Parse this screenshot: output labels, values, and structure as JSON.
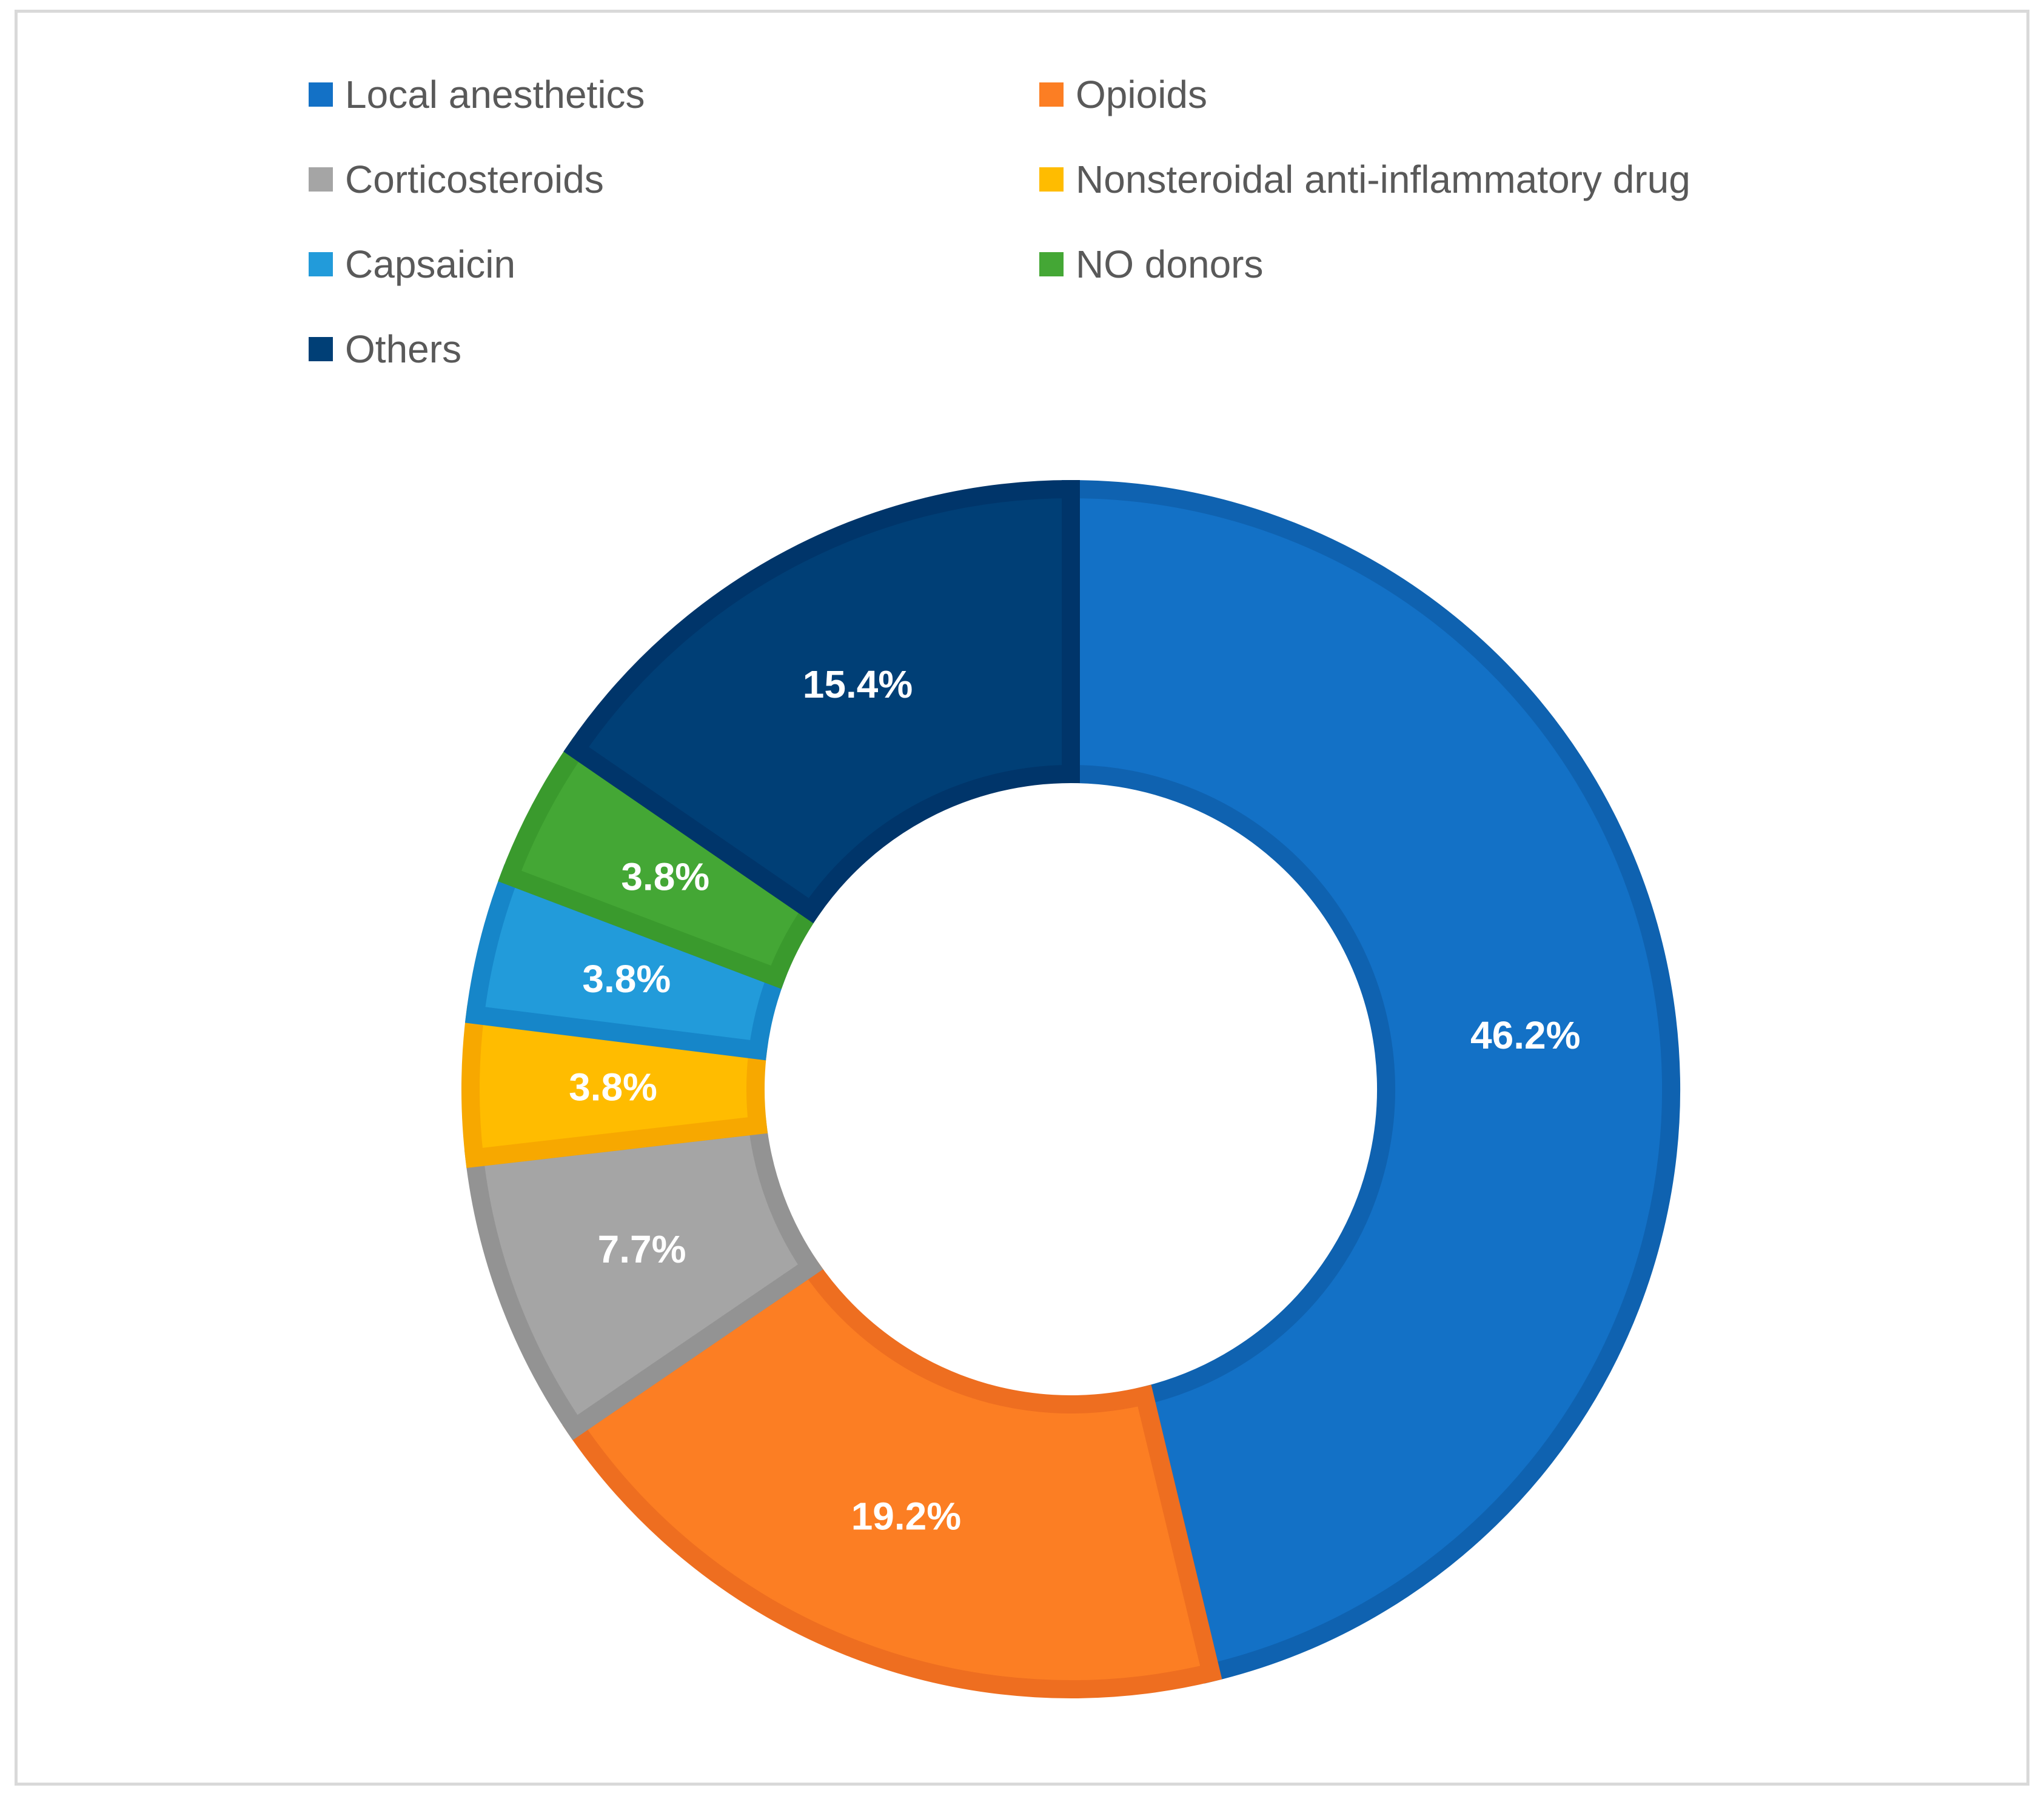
{
  "chart_data": {
    "type": "pie",
    "variant": "donut",
    "title": "",
    "legend_position": "top",
    "categories": [
      "Local anesthetics",
      "Opioids",
      "Corticosteroids",
      "Nonsteroidal anti-inflammatory drug",
      "Capsaicin",
      "NO donors",
      "Others"
    ],
    "values": [
      46.2,
      19.2,
      7.7,
      3.8,
      3.8,
      3.8,
      15.4
    ],
    "data_labels": [
      "46.2%",
      "19.2%",
      "7.7%",
      "3.8%",
      "3.8%",
      "3.8%",
      "15.4%"
    ],
    "colors": [
      "#1371C6",
      "#FC7E23",
      "#A5A5A5",
      "#FFBC00",
      "#229BDA",
      "#44A735",
      "#003F76"
    ],
    "border_colors": [
      "#0F62B0",
      "#EE6E20",
      "#939393",
      "#F7A800",
      "#1686C9",
      "#3A9A2D",
      "#00356A"
    ]
  }
}
